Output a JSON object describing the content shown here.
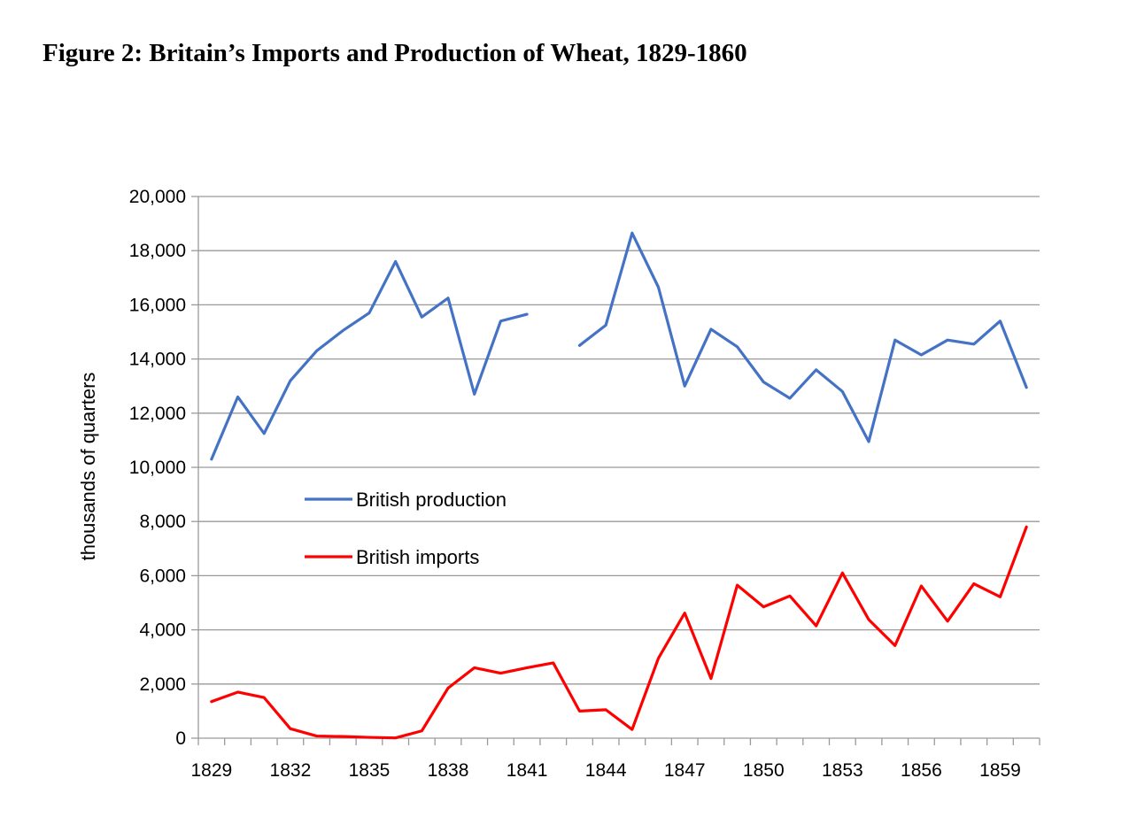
{
  "figure": {
    "title": "Figure 2: Britain’s Imports and Production of Wheat, 1829-1860"
  },
  "chart_data": {
    "type": "line",
    "title": "Figure 2: Britain’s Imports and Production of Wheat, 1829-1860",
    "xlabel": "",
    "ylabel": "thousands of quarters",
    "x": [
      1829,
      1830,
      1831,
      1832,
      1833,
      1834,
      1835,
      1836,
      1837,
      1838,
      1839,
      1840,
      1841,
      1842,
      1843,
      1844,
      1845,
      1846,
      1847,
      1848,
      1849,
      1850,
      1851,
      1852,
      1853,
      1854,
      1855,
      1856,
      1857,
      1858,
      1859,
      1860
    ],
    "x_tick_labels": [
      "1829",
      "1832",
      "1835",
      "1838",
      "1841",
      "1844",
      "1847",
      "1850",
      "1853",
      "1856",
      "1859"
    ],
    "ylim": [
      0,
      20000
    ],
    "y_ticks": [
      0,
      2000,
      4000,
      6000,
      8000,
      10000,
      12000,
      14000,
      16000,
      18000,
      20000
    ],
    "y_tick_labels": [
      "0",
      "2,000",
      "4,000",
      "6,000",
      "8,000",
      "10,000",
      "12,000",
      "14,000",
      "16,000",
      "18,000",
      "20,000"
    ],
    "grid": "horizontal",
    "legend_position": "left-middle",
    "series": [
      {
        "name": "British production",
        "color": "#4472C4",
        "values": [
          10300,
          12600,
          11250,
          13200,
          14300,
          15050,
          15700,
          17600,
          15550,
          16250,
          12700,
          15400,
          15650,
          null,
          14500,
          15250,
          18650,
          16650,
          13000,
          15100,
          14450,
          13150,
          12550,
          13600,
          12800,
          10950,
          14700,
          14150,
          14700,
          14550,
          15400,
          12950
        ]
      },
      {
        "name": "British imports",
        "color": "#FF0000",
        "values": [
          1350,
          1700,
          1500,
          350,
          80,
          60,
          30,
          10,
          270,
          1850,
          2600,
          2400,
          2600,
          2780,
          1000,
          1050,
          320,
          2950,
          4620,
          2200,
          5650,
          4850,
          5250,
          4150,
          6100,
          4380,
          3420,
          5620,
          4320,
          5700,
          5220,
          7800
        ]
      }
    ]
  }
}
